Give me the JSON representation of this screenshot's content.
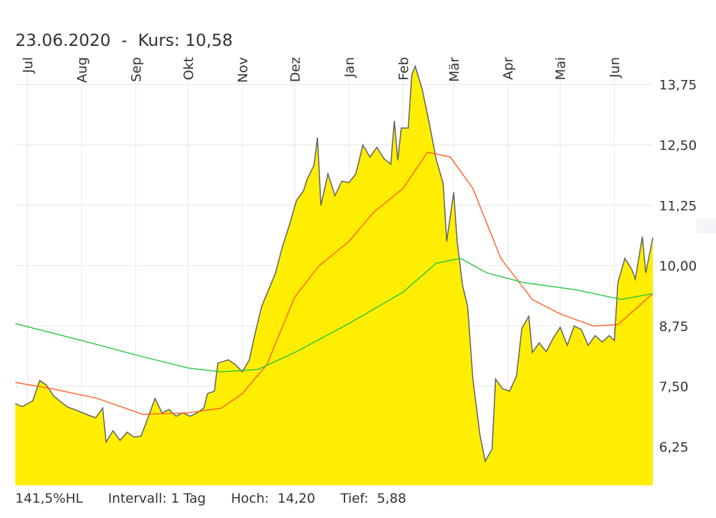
{
  "header": {
    "date": "23.06.2020",
    "separator": "-",
    "price_label": "Kurs:",
    "price_value": "10,58"
  },
  "footer": {
    "range": "141,5%HL",
    "interval_label": "Intervall:",
    "interval_value": "1 Tag",
    "high_label": "Hoch:",
    "high_value": "14,20",
    "low_label": "Tief:",
    "low_value": "5,88"
  },
  "chart_data": {
    "type": "area",
    "title": "",
    "xlabel": "",
    "ylabel": "",
    "grid": true,
    "ylim": [
      5.45,
      14.35
    ],
    "y_ticks": [
      "13,75",
      "12,50",
      "11,25",
      "10,00",
      "8,75",
      "7,50",
      "6,25"
    ],
    "y_tick_values": [
      13.75,
      12.5,
      11.25,
      10.0,
      8.75,
      7.5,
      6.25
    ],
    "x_range": [
      "2019-06-24",
      "2020-06-23"
    ],
    "x_ticks": [
      {
        "label": "Jul",
        "date": "2019-07-01"
      },
      {
        "label": "Aug",
        "date": "2019-08-01"
      },
      {
        "label": "Sep",
        "date": "2019-09-01"
      },
      {
        "label": "Okt",
        "date": "2019-10-01"
      },
      {
        "label": "Nov",
        "date": "2019-11-01"
      },
      {
        "label": "Dez",
        "date": "2019-12-01"
      },
      {
        "label": "Jan",
        "date": "2020-01-01"
      },
      {
        "label": "Feb",
        "date": "2020-02-01"
      },
      {
        "label": "Mär",
        "date": "2020-03-01"
      },
      {
        "label": "Apr",
        "date": "2020-04-01"
      },
      {
        "label": "Mai",
        "date": "2020-05-01"
      },
      {
        "label": "Jun",
        "date": "2020-06-01"
      }
    ],
    "colors": {
      "area_fill": "#ffee00",
      "price_line": "#666666",
      "ma_short": "#ff5a1f",
      "ma_long": "#22c43c",
      "grid": "#e6e6e6"
    },
    "series": [
      {
        "values": [
          [
            "2019-06-24",
            7.14
          ],
          [
            "2019-06-28",
            7.08
          ],
          [
            "2019-07-04",
            7.2
          ],
          [
            "2019-07-08",
            7.62
          ],
          [
            "2019-07-12",
            7.52
          ],
          [
            "2019-07-16",
            7.3
          ],
          [
            "2019-07-20",
            7.18
          ],
          [
            "2019-07-24",
            7.07
          ],
          [
            "2019-07-28",
            7.02
          ],
          [
            "2019-08-01",
            6.96
          ],
          [
            "2019-08-05",
            6.9
          ],
          [
            "2019-08-09",
            6.85
          ],
          [
            "2019-08-13",
            7.05
          ],
          [
            "2019-08-15",
            6.35
          ],
          [
            "2019-08-19",
            6.58
          ],
          [
            "2019-08-23",
            6.38
          ],
          [
            "2019-08-27",
            6.55
          ],
          [
            "2019-08-31",
            6.45
          ],
          [
            "2019-09-04",
            6.47
          ],
          [
            "2019-09-08",
            6.85
          ],
          [
            "2019-09-12",
            7.25
          ],
          [
            "2019-09-16",
            6.95
          ],
          [
            "2019-09-20",
            7.02
          ],
          [
            "2019-09-24",
            6.88
          ],
          [
            "2019-09-28",
            6.95
          ],
          [
            "2019-10-02",
            6.88
          ],
          [
            "2019-10-06",
            6.95
          ],
          [
            "2019-10-10",
            7.05
          ],
          [
            "2019-10-12",
            7.35
          ],
          [
            "2019-10-16",
            7.4
          ],
          [
            "2019-10-18",
            7.98
          ],
          [
            "2019-10-24",
            8.05
          ],
          [
            "2019-10-28",
            7.95
          ],
          [
            "2019-11-01",
            7.8
          ],
          [
            "2019-11-05",
            8.05
          ],
          [
            "2019-11-08",
            8.55
          ],
          [
            "2019-11-12",
            9.15
          ],
          [
            "2019-11-16",
            9.5
          ],
          [
            "2019-11-20",
            9.85
          ],
          [
            "2019-11-24",
            10.4
          ],
          [
            "2019-11-28",
            10.85
          ],
          [
            "2019-12-02",
            11.35
          ],
          [
            "2019-12-06",
            11.55
          ],
          [
            "2019-12-08",
            11.78
          ],
          [
            "2019-12-12",
            12.08
          ],
          [
            "2019-12-14",
            12.65
          ],
          [
            "2019-12-16",
            11.25
          ],
          [
            "2019-12-20",
            11.9
          ],
          [
            "2019-12-24",
            11.45
          ],
          [
            "2019-12-28",
            11.75
          ],
          [
            "2020-01-01",
            11.72
          ],
          [
            "2020-01-05",
            11.9
          ],
          [
            "2020-01-09",
            12.5
          ],
          [
            "2020-01-13",
            12.25
          ],
          [
            "2020-01-17",
            12.45
          ],
          [
            "2020-01-21",
            12.22
          ],
          [
            "2020-01-25",
            12.1
          ],
          [
            "2020-01-27",
            13.0
          ],
          [
            "2020-01-29",
            12.18
          ],
          [
            "2020-01-31",
            12.85
          ],
          [
            "2020-02-04",
            12.85
          ],
          [
            "2020-02-06",
            13.95
          ],
          [
            "2020-02-08",
            14.13
          ],
          [
            "2020-02-12",
            13.65
          ],
          [
            "2020-02-16",
            12.95
          ],
          [
            "2020-02-20",
            12.2
          ],
          [
            "2020-02-24",
            11.7
          ],
          [
            "2020-02-26",
            10.5
          ],
          [
            "2020-03-01",
            11.52
          ],
          [
            "2020-03-03",
            10.5
          ],
          [
            "2020-03-06",
            9.6
          ],
          [
            "2020-03-09",
            9.15
          ],
          [
            "2020-03-12",
            7.65
          ],
          [
            "2020-03-16",
            6.5
          ],
          [
            "2020-03-19",
            5.95
          ],
          [
            "2020-03-23",
            6.2
          ],
          [
            "2020-03-25",
            7.65
          ],
          [
            "2020-03-29",
            7.45
          ],
          [
            "2020-04-02",
            7.4
          ],
          [
            "2020-04-06",
            7.72
          ],
          [
            "2020-04-09",
            8.7
          ],
          [
            "2020-04-13",
            8.95
          ],
          [
            "2020-04-15",
            8.2
          ],
          [
            "2020-04-19",
            8.4
          ],
          [
            "2020-04-23",
            8.22
          ],
          [
            "2020-04-27",
            8.5
          ],
          [
            "2020-05-01",
            8.72
          ],
          [
            "2020-05-05",
            8.35
          ],
          [
            "2020-05-09",
            8.75
          ],
          [
            "2020-05-13",
            8.68
          ],
          [
            "2020-05-17",
            8.35
          ],
          [
            "2020-05-21",
            8.55
          ],
          [
            "2020-05-25",
            8.42
          ],
          [
            "2020-05-29",
            8.55
          ],
          [
            "2020-06-01",
            8.45
          ],
          [
            "2020-06-03",
            9.65
          ],
          [
            "2020-06-07",
            10.15
          ],
          [
            "2020-06-11",
            9.92
          ],
          [
            "2020-06-13",
            9.72
          ],
          [
            "2020-06-17",
            10.6
          ],
          [
            "2020-06-19",
            9.85
          ],
          [
            "2020-06-23",
            10.58
          ]
        ]
      },
      {
        "values": [
          [
            "2019-06-24",
            7.58
          ],
          [
            "2019-07-15",
            7.45
          ],
          [
            "2019-08-10",
            7.25
          ],
          [
            "2019-09-05",
            6.92
          ],
          [
            "2019-10-01",
            6.95
          ],
          [
            "2019-10-20",
            7.05
          ],
          [
            "2019-11-01",
            7.35
          ],
          [
            "2019-11-15",
            7.95
          ],
          [
            "2019-12-01",
            9.35
          ],
          [
            "2019-12-15",
            10.0
          ],
          [
            "2020-01-01",
            10.5
          ],
          [
            "2020-01-15",
            11.1
          ],
          [
            "2020-02-01",
            11.6
          ],
          [
            "2020-02-15",
            12.35
          ],
          [
            "2020-02-28",
            12.25
          ],
          [
            "2020-03-12",
            11.6
          ],
          [
            "2020-03-28",
            10.15
          ],
          [
            "2020-04-15",
            9.3
          ],
          [
            "2020-05-01",
            9.0
          ],
          [
            "2020-05-20",
            8.75
          ],
          [
            "2020-06-03",
            8.78
          ],
          [
            "2020-06-23",
            9.42
          ]
        ]
      },
      {
        "values": [
          [
            "2019-06-24",
            8.8
          ],
          [
            "2019-08-01",
            8.45
          ],
          [
            "2019-09-01",
            8.15
          ],
          [
            "2019-10-01",
            7.88
          ],
          [
            "2019-10-20",
            7.8
          ],
          [
            "2019-11-10",
            7.85
          ],
          [
            "2019-12-01",
            8.2
          ],
          [
            "2020-01-01",
            8.8
          ],
          [
            "2020-02-01",
            9.45
          ],
          [
            "2020-02-20",
            10.05
          ],
          [
            "2020-03-05",
            10.15
          ],
          [
            "2020-03-20",
            9.85
          ],
          [
            "2020-04-10",
            9.65
          ],
          [
            "2020-05-10",
            9.5
          ],
          [
            "2020-06-05",
            9.3
          ],
          [
            "2020-06-23",
            9.42
          ]
        ]
      }
    ]
  }
}
